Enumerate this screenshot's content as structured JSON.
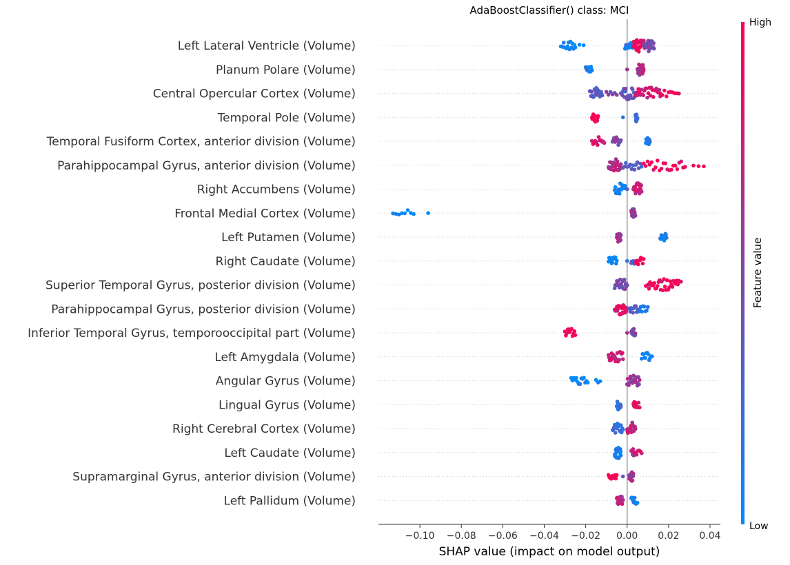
{
  "chart_data": {
    "type": "scatter",
    "subtype": "beeswarm",
    "title": "AdaBoostClassifier() class: MCI",
    "xlabel": "SHAP value (impact on model output)",
    "xlim": [
      -0.12,
      0.045
    ],
    "xticks": [
      -0.1,
      -0.08,
      -0.06,
      -0.04,
      -0.02,
      0.0,
      0.02,
      0.04
    ],
    "xtick_labels": [
      "−0.10",
      "−0.08",
      "−0.06",
      "−0.04",
      "−0.02",
      "0.00",
      "0.02",
      "0.04"
    ],
    "colorbar": {
      "title": "Feature value",
      "high_label": "High",
      "low_label": "Low",
      "low_color": "#008bfb",
      "high_color": "#ff0052"
    },
    "zero_line": true,
    "features": [
      {
        "name": "Left Lateral Ventricle (Volume)",
        "clusters": [
          {
            "min": -0.032,
            "max": -0.025,
            "n": 16,
            "fv": 0.0
          },
          {
            "min": -0.023,
            "max": -0.021,
            "n": 2,
            "fv": 0.0
          },
          {
            "min": -0.001,
            "max": 0.003,
            "n": 18,
            "fv": 0.15
          },
          {
            "min": 0.003,
            "max": 0.009,
            "n": 26,
            "fv": 0.9
          },
          {
            "min": 0.008,
            "max": 0.013,
            "n": 24,
            "fv": 0.5
          }
        ]
      },
      {
        "name": "Planum Polare (Volume)",
        "clusters": [
          {
            "min": -0.02,
            "max": -0.017,
            "n": 14,
            "fv": 0.05
          },
          {
            "min": 0.0,
            "max": 0.0,
            "n": 1,
            "fv": 0.7
          },
          {
            "min": 0.005,
            "max": 0.008,
            "n": 22,
            "fv": 0.65
          }
        ]
      },
      {
        "name": "Central Opercular Cortex (Volume)",
        "clusters": [
          {
            "min": -0.018,
            "max": -0.012,
            "n": 22,
            "fv": 0.35
          },
          {
            "min": -0.01,
            "max": -0.005,
            "n": 6,
            "fv": 0.45
          },
          {
            "min": -0.003,
            "max": 0.004,
            "n": 22,
            "fv": 0.4
          },
          {
            "min": 0.004,
            "max": 0.016,
            "n": 26,
            "fv": 0.85
          },
          {
            "min": 0.016,
            "max": 0.025,
            "n": 10,
            "fv": 1.0
          }
        ]
      },
      {
        "name": "Temporal Pole (Volume)",
        "clusters": [
          {
            "min": -0.017,
            "max": -0.014,
            "n": 14,
            "fv": 1.0
          },
          {
            "min": -0.002,
            "max": -0.002,
            "n": 1,
            "fv": 0.05
          },
          {
            "min": 0.004,
            "max": 0.005,
            "n": 14,
            "fv": 0.3
          }
        ]
      },
      {
        "name": "Temporal Fusiform Cortex, anterior division (Volume)",
        "clusters": [
          {
            "min": -0.017,
            "max": -0.011,
            "n": 12,
            "fv": 0.9
          },
          {
            "min": -0.007,
            "max": -0.003,
            "n": 14,
            "fv": 0.5
          },
          {
            "min": 0.009,
            "max": 0.011,
            "n": 12,
            "fv": 0.05
          }
        ]
      },
      {
        "name": "Parahippocampal Gyrus, anterior division (Volume)",
        "clusters": [
          {
            "min": -0.009,
            "max": -0.003,
            "n": 26,
            "fv": 0.7
          },
          {
            "min": -0.002,
            "max": 0.007,
            "n": 14,
            "fv": 0.3
          },
          {
            "min": 0.008,
            "max": 0.028,
            "n": 22,
            "fv": 0.95
          },
          {
            "min": 0.032,
            "max": 0.037,
            "n": 3,
            "fv": 1.0
          }
        ]
      },
      {
        "name": "Right Accumbens (Volume)",
        "clusters": [
          {
            "min": -0.006,
            "max": -0.001,
            "n": 18,
            "fv": 0.05
          },
          {
            "min": 0.0,
            "max": 0.0,
            "n": 1,
            "fv": 0.4
          },
          {
            "min": 0.003,
            "max": 0.007,
            "n": 24,
            "fv": 0.8
          }
        ]
      },
      {
        "name": "Frontal Medial Cortex (Volume)",
        "clusters": [
          {
            "min": -0.113,
            "max": -0.103,
            "n": 8,
            "fv": 0.0
          },
          {
            "min": -0.096,
            "max": -0.096,
            "n": 1,
            "fv": 0.0
          },
          {
            "min": 0.002,
            "max": 0.004,
            "n": 14,
            "fv": 0.6
          }
        ]
      },
      {
        "name": "Left Putamen (Volume)",
        "clusters": [
          {
            "min": -0.005,
            "max": -0.003,
            "n": 16,
            "fv": 0.65
          },
          {
            "min": 0.016,
            "max": 0.019,
            "n": 12,
            "fv": 0.05
          }
        ]
      },
      {
        "name": "Right Caudate (Volume)",
        "clusters": [
          {
            "min": -0.009,
            "max": -0.005,
            "n": 14,
            "fv": 0.05
          },
          {
            "min": 0.0,
            "max": 0.0,
            "n": 1,
            "fv": 0.1
          },
          {
            "min": 0.002,
            "max": 0.004,
            "n": 10,
            "fv": 0.3
          },
          {
            "min": 0.004,
            "max": 0.008,
            "n": 10,
            "fv": 0.9
          }
        ]
      },
      {
        "name": "Superior Temporal Gyrus, posterior division (Volume)",
        "clusters": [
          {
            "min": -0.006,
            "max": 0.0,
            "n": 24,
            "fv": 0.45
          },
          {
            "min": 0.009,
            "max": 0.026,
            "n": 34,
            "fv": 0.95
          }
        ]
      },
      {
        "name": "Parahippocampal Gyrus, posterior division (Volume)",
        "clusters": [
          {
            "min": -0.006,
            "max": 0.0,
            "n": 24,
            "fv": 0.9
          },
          {
            "min": 0.001,
            "max": 0.006,
            "n": 12,
            "fv": 0.3
          },
          {
            "min": 0.006,
            "max": 0.01,
            "n": 8,
            "fv": 0.15
          }
        ]
      },
      {
        "name": "Inferior Temporal Gyrus, temporooccipital part (Volume)",
        "clusters": [
          {
            "min": -0.03,
            "max": -0.025,
            "n": 12,
            "fv": 1.0
          },
          {
            "min": 0.0,
            "max": 0.0,
            "n": 1,
            "fv": 0.7
          },
          {
            "min": 0.002,
            "max": 0.004,
            "n": 14,
            "fv": 0.45
          }
        ]
      },
      {
        "name": "Left Amygdala (Volume)",
        "clusters": [
          {
            "min": -0.009,
            "max": -0.002,
            "n": 24,
            "fv": 0.8
          },
          {
            "min": 0.007,
            "max": 0.012,
            "n": 12,
            "fv": 0.05
          }
        ]
      },
      {
        "name": "Angular Gyrus (Volume)",
        "clusters": [
          {
            "min": -0.027,
            "max": -0.019,
            "n": 14,
            "fv": 0.0
          },
          {
            "min": -0.015,
            "max": -0.013,
            "n": 3,
            "fv": 0.0
          },
          {
            "min": 0.0,
            "max": 0.006,
            "n": 24,
            "fv": 0.6
          }
        ]
      },
      {
        "name": "Lingual Gyrus (Volume)",
        "clusters": [
          {
            "min": -0.005,
            "max": -0.003,
            "n": 16,
            "fv": 0.2
          },
          {
            "min": 0.003,
            "max": 0.006,
            "n": 14,
            "fv": 0.9
          }
        ]
      },
      {
        "name": "Right Cerebral Cortex (Volume)",
        "clusters": [
          {
            "min": -0.007,
            "max": -0.002,
            "n": 16,
            "fv": 0.2
          },
          {
            "min": 0.0,
            "max": 0.004,
            "n": 22,
            "fv": 0.75
          }
        ]
      },
      {
        "name": "Left Caudate (Volume)",
        "clusters": [
          {
            "min": -0.006,
            "max": -0.003,
            "n": 30,
            "fv": 0.1
          },
          {
            "min": 0.002,
            "max": 0.004,
            "n": 10,
            "fv": 0.7
          },
          {
            "min": 0.004,
            "max": 0.007,
            "n": 6,
            "fv": 0.9
          }
        ]
      },
      {
        "name": "Supramarginal Gyrus, anterior division (Volume)",
        "clusters": [
          {
            "min": -0.009,
            "max": -0.005,
            "n": 10,
            "fv": 1.0
          },
          {
            "min": -0.002,
            "max": -0.002,
            "n": 1,
            "fv": 0.4
          },
          {
            "min": 0.001,
            "max": 0.003,
            "n": 16,
            "fv": 0.6
          }
        ]
      },
      {
        "name": "Left Pallidum (Volume)",
        "clusters": [
          {
            "min": -0.005,
            "max": -0.002,
            "n": 18,
            "fv": 0.75
          },
          {
            "min": 0.002,
            "max": 0.005,
            "n": 12,
            "fv": 0.05
          }
        ]
      }
    ]
  }
}
